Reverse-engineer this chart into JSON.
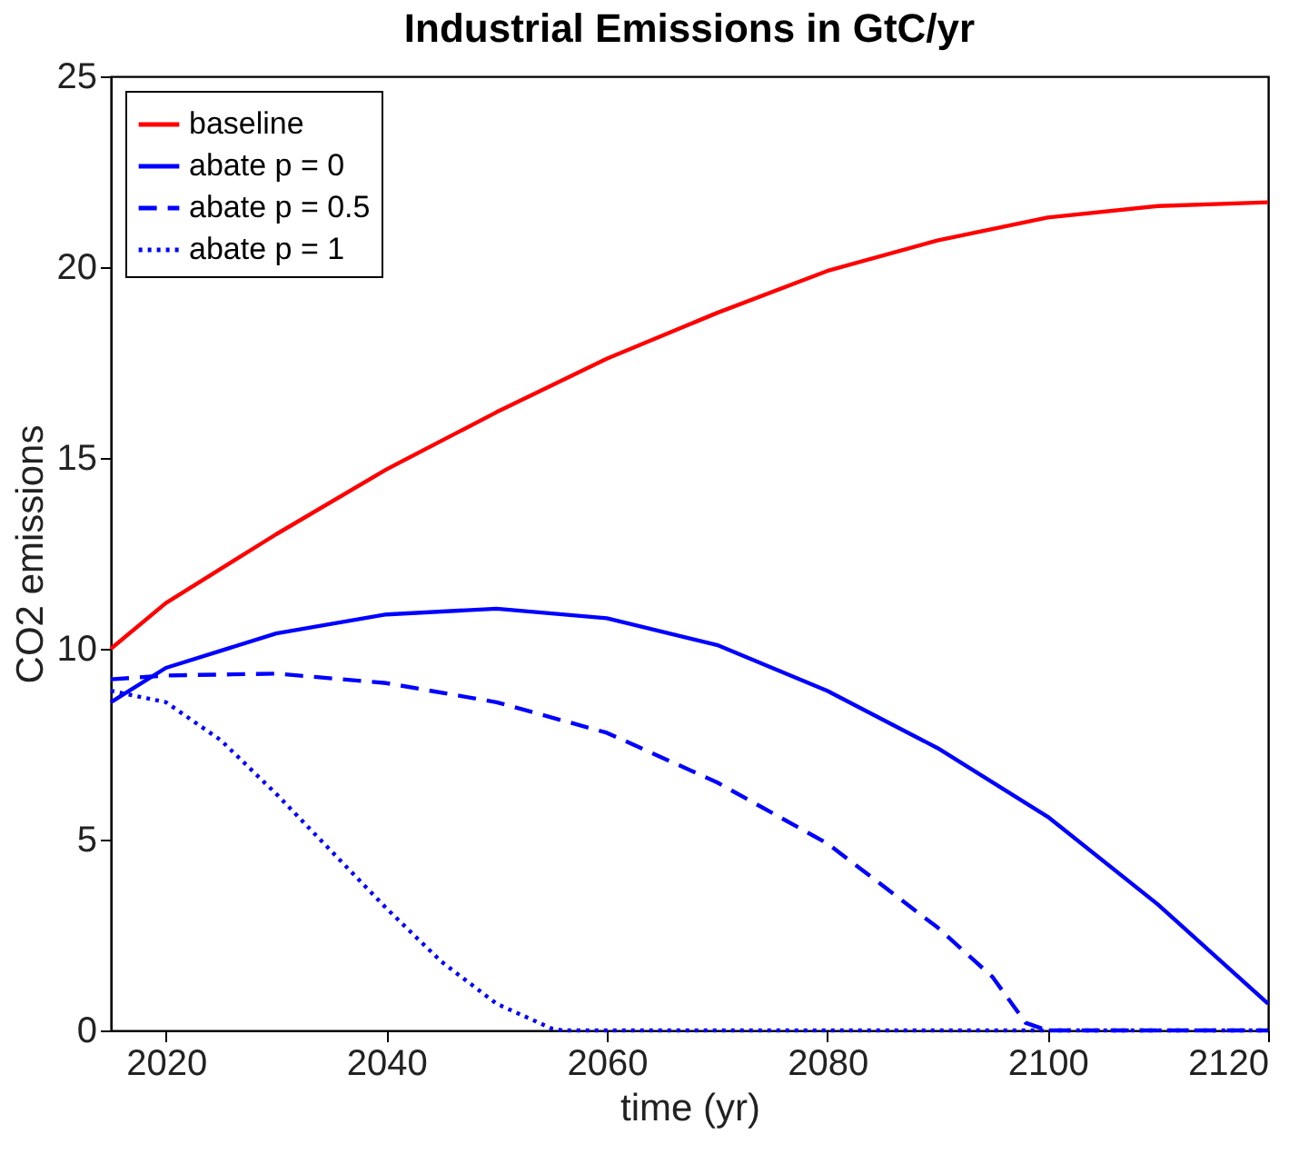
{
  "chart_data": {
    "type": "line",
    "title": "Industrial Emissions in GtC/yr",
    "xlabel": "time (yr)",
    "ylabel": "CO2 emissions",
    "xlim": [
      2015,
      2120
    ],
    "xticks": [
      2020,
      2040,
      2060,
      2080,
      2100,
      2120
    ],
    "ylim": [
      0,
      25
    ],
    "yticks": [
      0,
      5,
      10,
      15,
      20,
      25
    ],
    "grid": false,
    "legend": "top left",
    "marker": "none",
    "series": [
      {
        "name": "baseline",
        "color": "#ff0000",
        "line_style": "solid",
        "x": [
          2015,
          2020,
          2030,
          2040,
          2050,
          2060,
          2070,
          2080,
          2090,
          2100,
          2110,
          2120
        ],
        "values": [
          10.0,
          11.2,
          13.0,
          14.7,
          16.2,
          17.6,
          18.8,
          19.9,
          20.7,
          21.3,
          21.6,
          21.7
        ]
      },
      {
        "name": "abate p = 0",
        "color": "#0000ff",
        "line_style": "solid",
        "x": [
          2015,
          2020,
          2030,
          2040,
          2050,
          2060,
          2070,
          2080,
          2090,
          2100,
          2110,
          2120
        ],
        "values": [
          8.6,
          9.5,
          10.4,
          10.9,
          11.05,
          10.8,
          10.1,
          8.9,
          7.4,
          5.6,
          3.3,
          0.7
        ]
      },
      {
        "name": "abate p = 0.5",
        "color": "#0000ff",
        "line_style": "dashed",
        "x": [
          2015,
          2020,
          2030,
          2040,
          2050,
          2060,
          2070,
          2080,
          2090,
          2095,
          2098,
          2100,
          2120
        ],
        "values": [
          9.2,
          9.3,
          9.35,
          9.1,
          8.6,
          7.8,
          6.5,
          4.9,
          2.7,
          1.4,
          0.2,
          0,
          0
        ]
      },
      {
        "name": "abate p = 1",
        "color": "#0000ff",
        "line_style": "dotted",
        "x": [
          2015,
          2020,
          2025,
          2030,
          2035,
          2040,
          2045,
          2050,
          2055,
          2056,
          2120
        ],
        "values": [
          8.9,
          8.6,
          7.6,
          6.2,
          4.7,
          3.2,
          1.8,
          0.7,
          0.05,
          0,
          0
        ]
      }
    ]
  }
}
